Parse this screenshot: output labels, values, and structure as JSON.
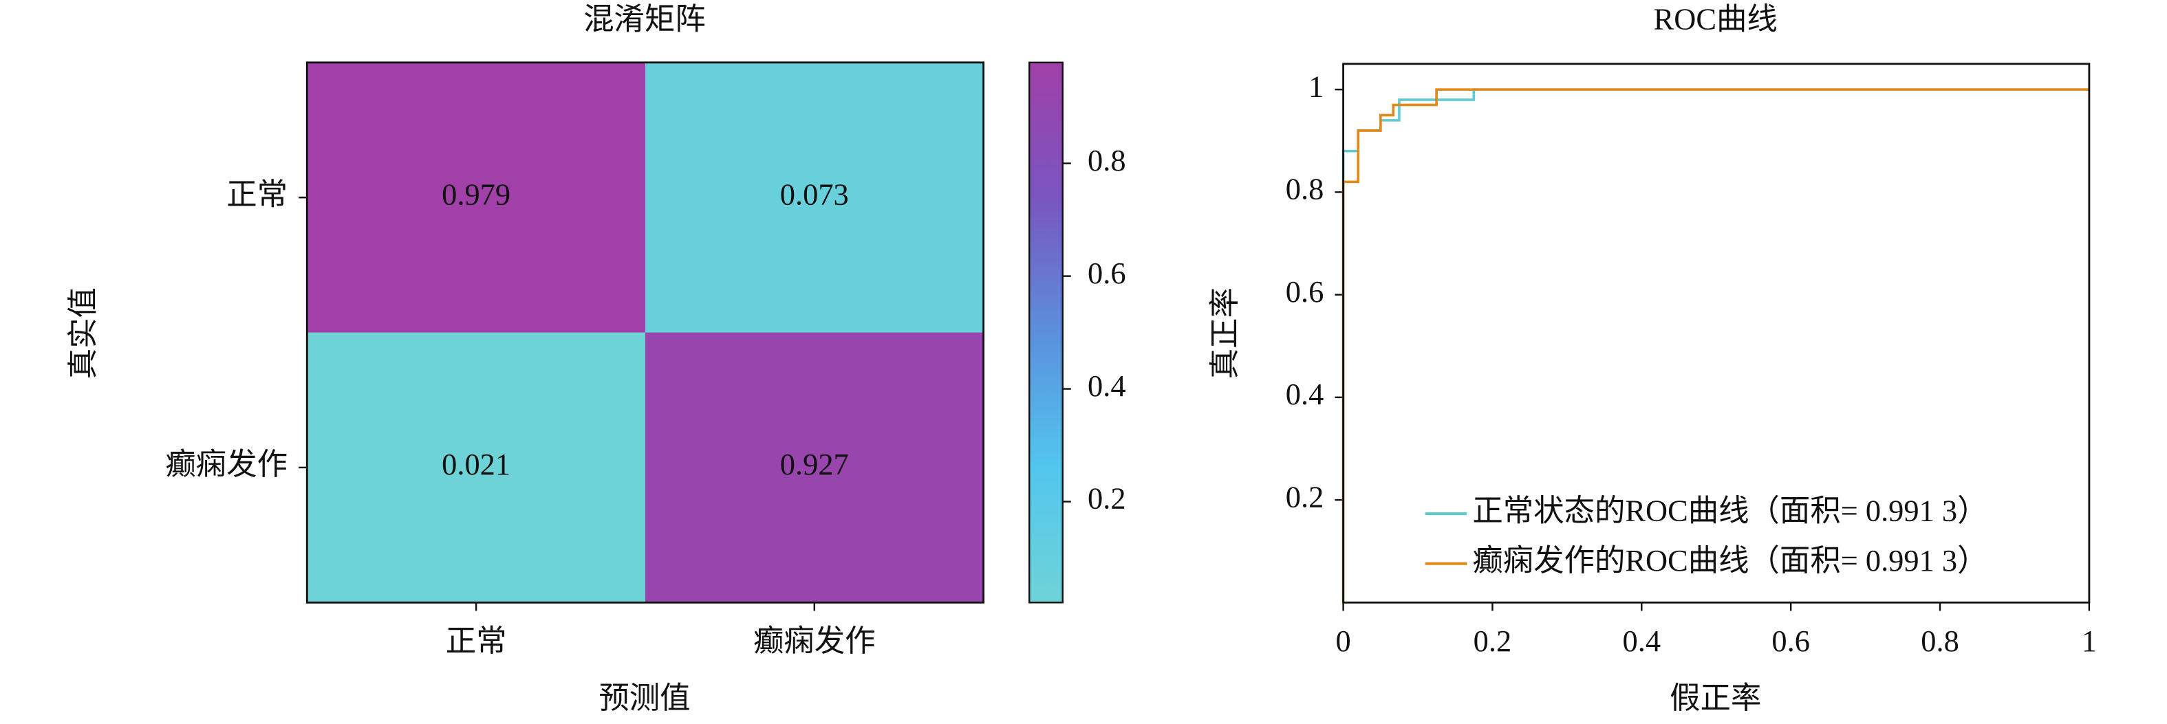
{
  "chart_data": [
    {
      "type": "heatmap",
      "title": "混淆矩阵",
      "xlabel": "预测值",
      "ylabel": "真实值",
      "x_categories": [
        "正常",
        "癫痫发作"
      ],
      "y_categories": [
        "正常",
        "癫痫发作"
      ],
      "values": [
        [
          0.979,
          0.073
        ],
        [
          0.021,
          0.927
        ]
      ],
      "colormap": [
        "#6ed3d6",
        "#52c6ee",
        "#5b8fdc",
        "#7a55c0",
        "#a040a8"
      ],
      "clim": [
        0.021,
        0.979
      ],
      "colorbar_ticks": [
        0.2,
        0.4,
        0.6,
        0.8
      ]
    },
    {
      "type": "line",
      "title": "ROC曲线",
      "xlabel": "假正率",
      "ylabel": "真正率",
      "xlim": [
        0,
        1
      ],
      "ylim": [
        0,
        1.05
      ],
      "xticks": [
        0,
        0.2,
        0.4,
        0.6,
        0.8,
        1
      ],
      "yticks": [
        0.2,
        0.4,
        0.6,
        0.8,
        1
      ],
      "legend": "lower right",
      "grid": false,
      "series": [
        {
          "name": "正常状态的ROC曲线（面积= 0.991 3）",
          "color": "#5fcbd2",
          "x": [
            0,
            0,
            0.02,
            0.02,
            0.05,
            0.05,
            0.075,
            0.075,
            0.175,
            0.175,
            1
          ],
          "values": [
            0,
            0.88,
            0.88,
            0.92,
            0.92,
            0.94,
            0.94,
            0.98,
            0.98,
            1,
            1
          ]
        },
        {
          "name": "癫痫发作的ROC曲线（面积= 0.991 3）",
          "color": "#e08a1e",
          "x": [
            0,
            0,
            0.02,
            0.02,
            0.05,
            0.05,
            0.067,
            0.067,
            0.08,
            0.08,
            0.125,
            0.125,
            1
          ],
          "values": [
            0,
            0.82,
            0.82,
            0.92,
            0.92,
            0.95,
            0.95,
            0.97,
            0.97,
            0.97,
            0.97,
            1,
            1
          ]
        }
      ]
    }
  ]
}
